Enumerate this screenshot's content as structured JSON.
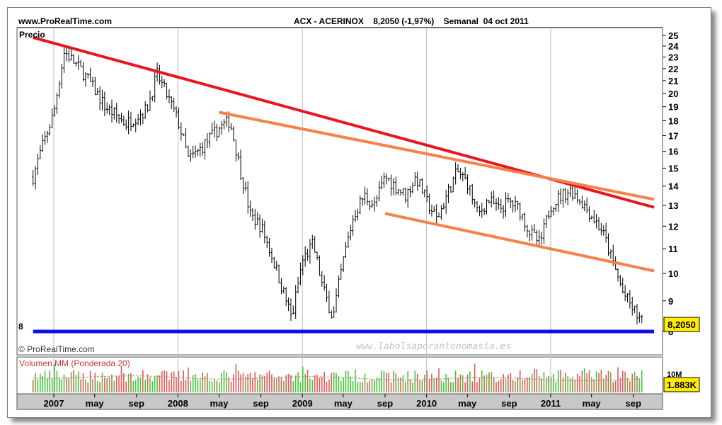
{
  "header": {
    "site": "www.ProRealTime.com",
    "quote": "ACX - ACERINOX    8,2050 (-1,97%)    Semanal  04 oct 2011"
  },
  "price_panel": {
    "label": "Precio",
    "left_level_label": "8",
    "last_value": "8,2050",
    "copyright": "© ProRealTime.com",
    "watermark": "www.labolsaporantonomasia.es"
  },
  "volume_panel": {
    "label": "Volumen MM (Ponderada 20)",
    "axis_label": "10M",
    "last_value": "1.883K"
  },
  "colors": {
    "main_trend": "#e8161e",
    "channel": "#f5814b",
    "support": "#1010ee",
    "candle": "#000000",
    "vol_up": "#44c83a",
    "vol_down": "#e05a5a",
    "value_box": "#ffee00"
  },
  "chart_data": {
    "type": "candlestick",
    "y_axis": {
      "min": 8,
      "max": 25,
      "scale": "log",
      "ticks": [
        25,
        24,
        23,
        22,
        21,
        20,
        19,
        18,
        17,
        16,
        15,
        14,
        13,
        12,
        11,
        10,
        9,
        8
      ]
    },
    "x_axis": {
      "labels": [
        "2007",
        "may",
        "sep",
        "2008",
        "may",
        "sep",
        "2009",
        "may",
        "sep",
        "2010",
        "may",
        "sep",
        "2011",
        "may",
        "sep"
      ]
    },
    "price_path": [
      {
        "t": "2006-11",
        "p": 14.5
      },
      {
        "t": "2007-01",
        "p": 18.5
      },
      {
        "t": "2007-02",
        "p": 23.5
      },
      {
        "t": "2007-04",
        "p": 21.5
      },
      {
        "t": "2007-06",
        "p": 19.0
      },
      {
        "t": "2007-08",
        "p": 17.8
      },
      {
        "t": "2007-10",
        "p": 18.8
      },
      {
        "t": "2007-11",
        "p": 21.5
      },
      {
        "t": "2008-01",
        "p": 18.0
      },
      {
        "t": "2008-02",
        "p": 15.5
      },
      {
        "t": "2008-03",
        "p": 16.0
      },
      {
        "t": "2008-05",
        "p": 17.5
      },
      {
        "t": "2008-06",
        "p": 18.0
      },
      {
        "t": "2008-07",
        "p": 15.0
      },
      {
        "t": "2008-08",
        "p": 12.5
      },
      {
        "t": "2008-09",
        "p": 12.0
      },
      {
        "t": "2008-11",
        "p": 9.5
      },
      {
        "t": "2008-12",
        "p": 8.4
      },
      {
        "t": "2009-01",
        "p": 10.5
      },
      {
        "t": "2009-02",
        "p": 11.2
      },
      {
        "t": "2009-03",
        "p": 9.5
      },
      {
        "t": "2009-04",
        "p": 8.4
      },
      {
        "t": "2009-05",
        "p": 10.5
      },
      {
        "t": "2009-06",
        "p": 12.5
      },
      {
        "t": "2009-07",
        "p": 13.5
      },
      {
        "t": "2009-08",
        "p": 13.0
      },
      {
        "t": "2009-09",
        "p": 14.5
      },
      {
        "t": "2009-10",
        "p": 14.0
      },
      {
        "t": "2009-11",
        "p": 13.5
      },
      {
        "t": "2009-12",
        "p": 14.5
      },
      {
        "t": "2010-01",
        "p": 13.2
      },
      {
        "t": "2010-02",
        "p": 12.3
      },
      {
        "t": "2010-03",
        "p": 13.5
      },
      {
        "t": "2010-04",
        "p": 14.8
      },
      {
        "t": "2010-05",
        "p": 14.2
      },
      {
        "t": "2010-06",
        "p": 12.5
      },
      {
        "t": "2010-07",
        "p": 13.3
      },
      {
        "t": "2010-08",
        "p": 12.8
      },
      {
        "t": "2010-09",
        "p": 13.2
      },
      {
        "t": "2010-10",
        "p": 12.8
      },
      {
        "t": "2010-11",
        "p": 11.7
      },
      {
        "t": "2010-12",
        "p": 11.2
      },
      {
        "t": "2011-01",
        "p": 13.0
      },
      {
        "t": "2011-02",
        "p": 13.5
      },
      {
        "t": "2011-03",
        "p": 13.8
      },
      {
        "t": "2011-04",
        "p": 13.2
      },
      {
        "t": "2011-05",
        "p": 12.5
      },
      {
        "t": "2011-06",
        "p": 11.8
      },
      {
        "t": "2011-07",
        "p": 10.5
      },
      {
        "t": "2011-08",
        "p": 9.3
      },
      {
        "t": "2011-09",
        "p": 8.7
      },
      {
        "t": "2011-10",
        "p": 8.205
      }
    ],
    "trendlines": [
      {
        "role": "main_trend",
        "from": {
          "t": "2006-11",
          "p": 24.8
        },
        "to": {
          "t": "2011-11",
          "p": 12.9
        }
      },
      {
        "role": "channel",
        "from": {
          "t": "2008-05",
          "p": 18.6
        },
        "to": {
          "t": "2011-11",
          "p": 13.3
        }
      },
      {
        "role": "channel",
        "from": {
          "t": "2009-09",
          "p": 12.6
        },
        "to": {
          "t": "2011-11",
          "p": 10.1
        }
      },
      {
        "role": "support",
        "from": {
          "t": "2006-11",
          "p": 8.0
        },
        "to": {
          "t": "2011-11",
          "p": 8.0
        }
      }
    ]
  }
}
